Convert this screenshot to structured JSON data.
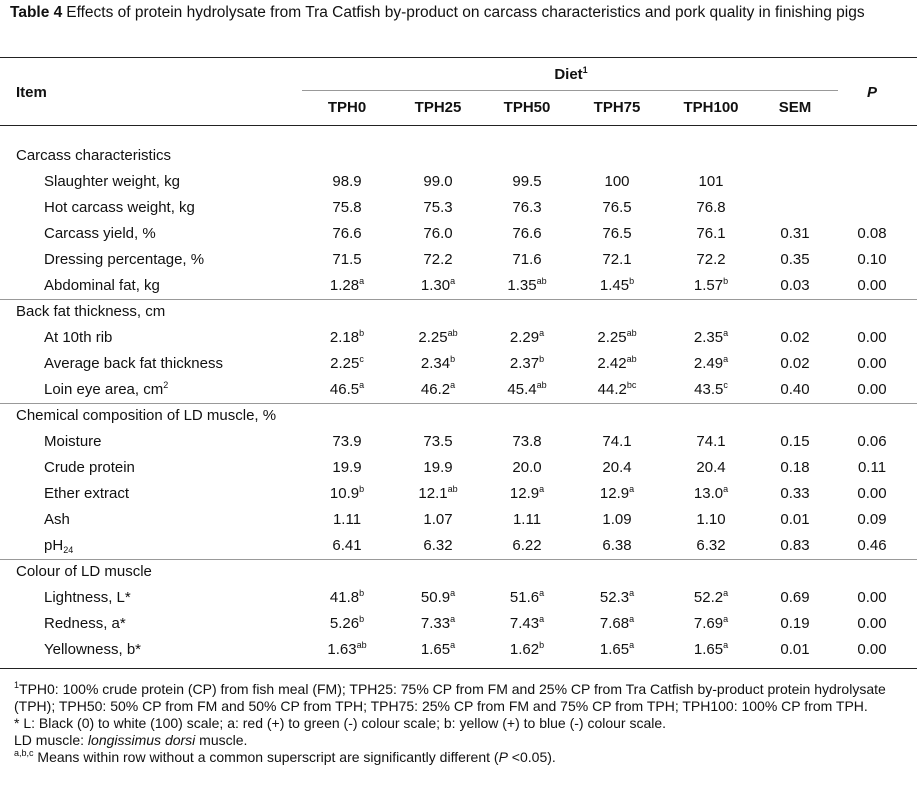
{
  "title": [
    {
      "bold": "Table 4"
    },
    {
      "text": "Effects of protein hydrolysate from Tra Catfish by-product on carcass characteristics and pork quality in finishing pigs"
    }
  ],
  "table": {
    "header": {
      "item": "Item",
      "diet": [
        {
          "text": "Diet"
        },
        {
          "sup": "1"
        }
      ],
      "columns": [
        "TPH0",
        "TPH25",
        "TPH50",
        "TPH75",
        "TPH100",
        "SEM"
      ],
      "p": {
        "italic": "P"
      }
    },
    "rows": [
      {
        "group": "Carcass characteristics"
      },
      {
        "item": "Slaughter weight, kg",
        "cells": [
          "98.9",
          "99.0",
          "99.5",
          "100",
          "101",
          null,
          null
        ]
      },
      {
        "item": "Hot carcass weight, kg",
        "cells": [
          "75.8",
          "75.3",
          "76.3",
          "76.5",
          "76.8",
          null,
          null
        ]
      },
      {
        "item": "Carcass yield, %",
        "cells": [
          "76.6",
          "76.0",
          "76.6",
          "76.5",
          "76.1",
          "0.31",
          "0.08"
        ]
      },
      {
        "item": "Dressing percentage, %",
        "cells": [
          "71.5",
          "72.2",
          "71.6",
          "72.1",
          "72.2",
          "0.35",
          "0.10"
        ]
      },
      {
        "item": "Abdominal fat, kg",
        "cells": [
          {
            "text": "1.28",
            "sup": "a"
          },
          {
            "text": "1.30",
            "sup": "a"
          },
          {
            "text": "1.35",
            "sup": "ab"
          },
          {
            "text": "1.45",
            "sup": "b"
          },
          {
            "text": "1.57",
            "sup": "b"
          },
          "0.03",
          "0.00"
        ]
      },
      {
        "group": "Back fat thickness, cm"
      },
      {
        "item": "At 10th rib",
        "cells": [
          {
            "text": "2.18",
            "sup": "b"
          },
          {
            "text": "2.25",
            "sup": "ab"
          },
          {
            "text": "2.29",
            "sup": "a"
          },
          {
            "text": "2.25",
            "sup": "ab"
          },
          {
            "text": "2.35",
            "sup": "a"
          },
          "0.02",
          "0.00"
        ]
      },
      {
        "item": "Average back fat thickness",
        "cells": [
          {
            "text": "2.25",
            "sup": "c"
          },
          {
            "text": "2.34",
            "sup": "b"
          },
          {
            "text": "2.37",
            "sup": "b"
          },
          {
            "text": "2.42",
            "sup": "ab"
          },
          {
            "text": "2.49",
            "sup": "a"
          },
          "0.02",
          "0.00"
        ]
      },
      {
        "item": {
          "text": "Loin eye area, cm",
          "sup": "2"
        },
        "cells": [
          {
            "text": "46.5",
            "sup": "a"
          },
          {
            "text": "46.2",
            "sup": "a"
          },
          {
            "text": "45.4",
            "sup": "ab"
          },
          {
            "text": "44.2",
            "sup": "bc"
          },
          {
            "text": "43.5",
            "sup": "c"
          },
          "0.40",
          "0.00"
        ]
      },
      {
        "group": "Chemical composition of LD muscle, %"
      },
      {
        "item": "Moisture",
        "cells": [
          "73.9",
          "73.5",
          "73.8",
          "74.1",
          "74.1",
          "0.15",
          "0.06"
        ]
      },
      {
        "item": "Crude protein",
        "cells": [
          "19.9",
          "19.9",
          "20.0",
          "20.4",
          "20.4",
          "0.18",
          "0.11"
        ]
      },
      {
        "item": "Ether extract",
        "cells": [
          {
            "text": "10.9",
            "sup": "b"
          },
          {
            "text": "12.1",
            "sup": "ab"
          },
          {
            "text": "12.9",
            "sup": "a"
          },
          {
            "text": "12.9",
            "sup": "a"
          },
          {
            "text": "13.0",
            "sup": "a"
          },
          "0.33",
          "0.00"
        ]
      },
      {
        "item": "Ash",
        "cells": [
          "1.11",
          "1.07",
          "1.11",
          "1.09",
          "1.10",
          "0.01",
          "0.09"
        ]
      },
      {
        "item": {
          "text": "pH",
          "sub": "24"
        },
        "cells": [
          "6.41",
          "6.32",
          "6.22",
          "6.38",
          "6.32",
          "0.83",
          "0.46"
        ]
      },
      {
        "group": "Colour of LD muscle"
      },
      {
        "item": "Lightness, L*",
        "cells": [
          {
            "text": "41.8",
            "sup": "b"
          },
          {
            "text": "50.9",
            "sup": "a"
          },
          {
            "text": "51.6",
            "sup": "a"
          },
          {
            "text": "52.3",
            "sup": "a"
          },
          {
            "text": "52.2",
            "sup": "a"
          },
          "0.69",
          "0.00"
        ]
      },
      {
        "item": "Redness, a*",
        "cells": [
          {
            "text": "5.26",
            "sup": "b"
          },
          {
            "text": "7.33",
            "sup": "a"
          },
          {
            "text": "7.43",
            "sup": "a"
          },
          {
            "text": "7.68",
            "sup": "a"
          },
          {
            "text": "7.69",
            "sup": "a"
          },
          "0.19",
          "0.00"
        ]
      },
      {
        "item": "Yellowness, b*",
        "cells": [
          {
            "text": "1.63",
            "sup": "ab"
          },
          {
            "text": "1.65",
            "sup": "a"
          },
          {
            "text": "1.62",
            "sup": "b"
          },
          {
            "text": "1.65",
            "sup": "a"
          },
          {
            "text": "1.65",
            "sup": "a"
          },
          "0.01",
          "0.00"
        ]
      }
    ]
  },
  "footnotes": [
    [
      {
        "sup": "1"
      },
      {
        "text": "TPH0: 100% crude protein (CP) from fish meal (FM); TPH25: 75% CP from FM and 25% CP from Tra Catfish by-product protein hydrolysate (TPH); TPH50: 50% CP from FM and 50% CP from TPH; TPH75: 25% CP from FM and 75% CP from TPH; TPH100: 100% CP from TPH."
      }
    ],
    [
      {
        "text": "* L: Black (0) to white (100) scale; a: red (+) to green (-) colour scale; b: yellow (+) to blue (-) colour scale."
      }
    ],
    [
      {
        "text": "LD muscle: "
      },
      {
        "italic": "longissimus dorsi"
      },
      {
        "text": " muscle."
      }
    ],
    [
      {
        "sup": "a,b,c"
      },
      {
        "text": " Means within row without a  common superscript are significantly different ("
      },
      {
        "italic": "P"
      },
      {
        "text": " <0.05)."
      }
    ]
  ]
}
